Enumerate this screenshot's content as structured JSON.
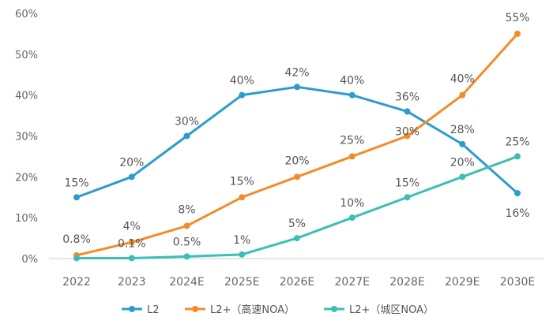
{
  "chart_data": {
    "type": "line",
    "categories": [
      "2022",
      "2023",
      "2024E",
      "2025E",
      "2026E",
      "2027E",
      "2028E",
      "2029E",
      "2030E"
    ],
    "ylim": [
      0,
      60
    ],
    "yticks": [
      "0%",
      "10%",
      "20%",
      "30%",
      "40%",
      "50%",
      "60%"
    ],
    "grid": false,
    "legend_position": "bottom",
    "series": [
      {
        "name": "L2",
        "color": "#2E9BCE",
        "values": [
          15,
          20,
          30,
          40,
          42,
          40,
          36,
          28,
          16
        ],
        "labels": [
          "15%",
          "20%",
          "30%",
          "40%",
          "42%",
          "40%",
          "36%",
          "28%",
          "16%"
        ]
      },
      {
        "name": "L2+（高速NOA）",
        "color": "#F28C28",
        "values": [
          0.8,
          4,
          8,
          15,
          20,
          25,
          30,
          40,
          55
        ],
        "labels": [
          "0.8%",
          "4%",
          "8%",
          "15%",
          "20%",
          "25%",
          "30%",
          "40%",
          "55%"
        ]
      },
      {
        "name": "L2+（城区NOA）",
        "color": "#3BBFB5",
        "values": [
          0.1,
          0.1,
          0.5,
          1,
          5,
          10,
          15,
          20,
          25
        ],
        "labels": [
          "",
          "0.1%",
          "0.5%",
          "1%",
          "5%",
          "10%",
          "15%",
          "20%",
          "25%"
        ]
      }
    ]
  }
}
